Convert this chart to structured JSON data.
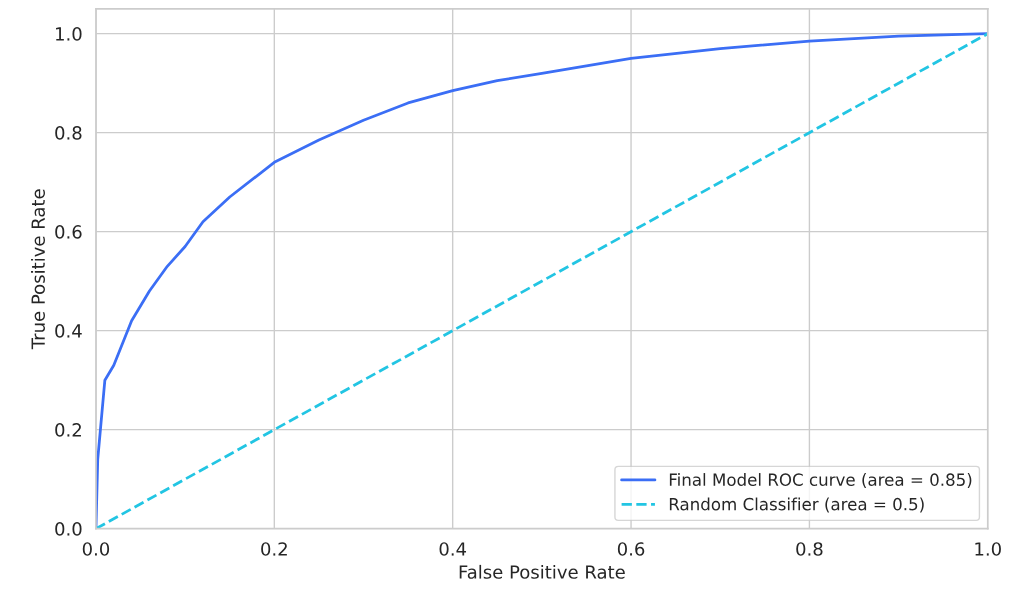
{
  "chart_data": {
    "type": "line",
    "xlabel": "False Positive Rate",
    "ylabel": "True Positive Rate",
    "xlim": [
      0.0,
      1.0
    ],
    "ylim": [
      0.0,
      1.05
    ],
    "xticks": [
      {
        "value": 0,
        "label": "0.0"
      },
      0.2,
      0.4,
      0.6,
      0.8,
      {
        "value": 1,
        "label": "1.0"
      }
    ],
    "yticks": [
      {
        "value": 0,
        "label": "0.0"
      },
      0.2,
      0.4,
      0.6,
      0.8,
      {
        "value": 1,
        "label": "1.0"
      }
    ],
    "grid": true,
    "legend": "bottom right",
    "series": [
      {
        "name": "Final Model ROC curve (area = 0.85)",
        "color": "#3b6ef5",
        "line_style": "solid",
        "x": [
          0,
          0.002,
          0.01,
          0.02,
          0.04,
          0.06,
          0.08,
          0.1,
          0.12,
          0.15,
          0.2,
          0.25,
          0.3,
          0.35,
          0.4,
          0.45,
          0.5,
          0.55,
          0.6,
          0.7,
          0.8,
          0.9,
          1.0
        ],
        "values": [
          0,
          0.14,
          0.3,
          0.33,
          0.42,
          0.48,
          0.53,
          0.57,
          0.62,
          0.67,
          0.74,
          0.785,
          0.825,
          0.86,
          0.885,
          0.905,
          0.92,
          0.935,
          0.95,
          0.97,
          0.985,
          0.995,
          1.0
        ]
      },
      {
        "name": "Random Classifier (area = 0.5)",
        "color": "#22c5e3",
        "line_style": "dashed",
        "x": [
          0,
          1
        ],
        "values": [
          0,
          1
        ]
      }
    ]
  }
}
